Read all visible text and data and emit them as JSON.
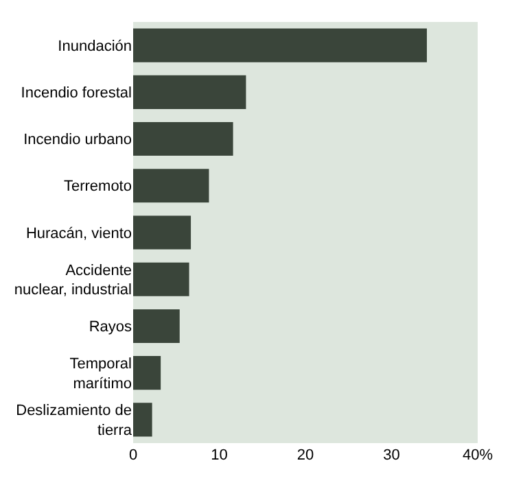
{
  "chart_data": {
    "type": "bar",
    "orientation": "horizontal",
    "categories": [
      "Inundación",
      "Incendio forestal",
      "Incendio urbano",
      "Terremoto",
      "Huracán, viento",
      "Accidente\nnuclear, industrial",
      "Rayos",
      "Temporal\nmarítimo",
      "Deslizamiento de\ntierra"
    ],
    "values": [
      34.1,
      13.1,
      11.6,
      8.8,
      6.7,
      6.5,
      5.4,
      3.2,
      2.2
    ],
    "color": "#3a453a",
    "xlim": [
      0,
      40
    ],
    "xticks": [
      0,
      10,
      20,
      30,
      {
        "value": 40,
        "label": "40%"
      }
    ],
    "grid": false
  }
}
